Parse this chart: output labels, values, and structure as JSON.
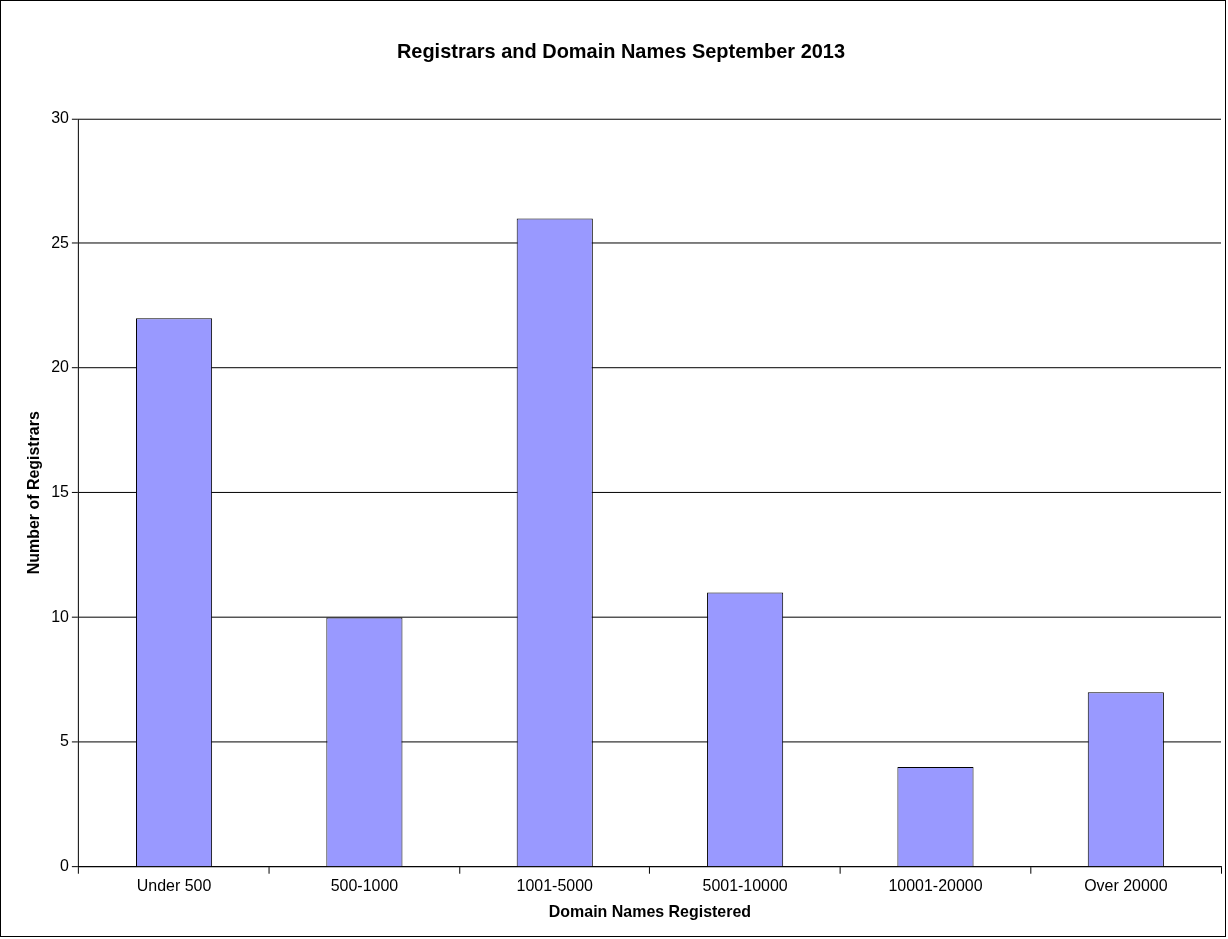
{
  "chart_data": {
    "type": "bar",
    "title": "Registrars and Domain Names September 2013",
    "xlabel": "Domain Names Registered",
    "ylabel": "Number of Registrars",
    "categories": [
      "Under 500",
      "500-1000",
      "1001-5000",
      "5001-10000",
      "10001-20000",
      "Over 20000"
    ],
    "values": [
      22,
      10,
      26,
      11,
      4,
      7
    ],
    "color": "#9999ff",
    "ylim": [
      0,
      30
    ],
    "yticks": [
      0,
      5,
      10,
      15,
      20,
      25,
      30
    ],
    "grid": "y",
    "legend": false
  }
}
